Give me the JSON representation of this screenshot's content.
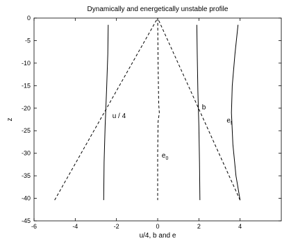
{
  "chart_data": {
    "type": "line",
    "title": "Dynamically and energetically unstable profile",
    "xlabel": "u/4, b and e",
    "ylabel": "z",
    "xlim": [
      -6,
      6
    ],
    "ylim": [
      -45,
      0
    ],
    "xticks": [
      -6,
      -4,
      -2,
      0,
      2,
      4
    ],
    "yticks": [
      0,
      -5,
      -10,
      -15,
      -20,
      -25,
      -30,
      -35,
      -40,
      -45
    ],
    "grid": false,
    "series": [
      {
        "id": "u4",
        "style": "dashed",
        "color": "#000000",
        "x": [
          -5,
          0
        ],
        "y": [
          -40.4,
          0
        ]
      },
      {
        "id": "b",
        "style": "dashed",
        "color": "#000000",
        "x": [
          4,
          0
        ],
        "y": [
          -40.4,
          0
        ]
      },
      {
        "id": "e0",
        "style": "dashed",
        "color": "#000000",
        "x": [
          0,
          0.02,
          0.05,
          0.08,
          0.02,
          0.0,
          0.0
        ],
        "y": [
          0,
          -10,
          -19,
          -21,
          -23,
          -30,
          -40.4
        ]
      },
      {
        "id": "u_profile",
        "style": "solid",
        "color": "#000000",
        "x": [
          -2.4,
          -2.42,
          -2.48,
          -2.55,
          -2.6,
          -2.62
        ],
        "y": [
          -1.5,
          -8,
          -16,
          -24,
          -32,
          -40.4
        ]
      },
      {
        "id": "b_profile",
        "style": "solid",
        "color": "#000000",
        "x": [
          1.9,
          1.92,
          1.95,
          2.0,
          2.03,
          2.05
        ],
        "y": [
          -1.5,
          -8,
          -16,
          -24,
          -32,
          -40.4
        ]
      },
      {
        "id": "e_profile",
        "style": "solid",
        "color": "#000000",
        "x": [
          3.9,
          3.75,
          3.62,
          3.58,
          3.65,
          3.8,
          4.0
        ],
        "y": [
          -1.5,
          -8,
          -15,
          -21,
          -28,
          -35,
          -40.4
        ]
      }
    ],
    "annotations": [
      {
        "text": "u / 4",
        "x": -2.2,
        "y": -22.2
      },
      {
        "text": "b",
        "x": 2.15,
        "y": -20.3
      },
      {
        "text": "e",
        "sub": "f",
        "x": 3.35,
        "y": -23.2
      },
      {
        "text": "e",
        "sub": "0",
        "x": 0.2,
        "y": -31
      }
    ]
  }
}
